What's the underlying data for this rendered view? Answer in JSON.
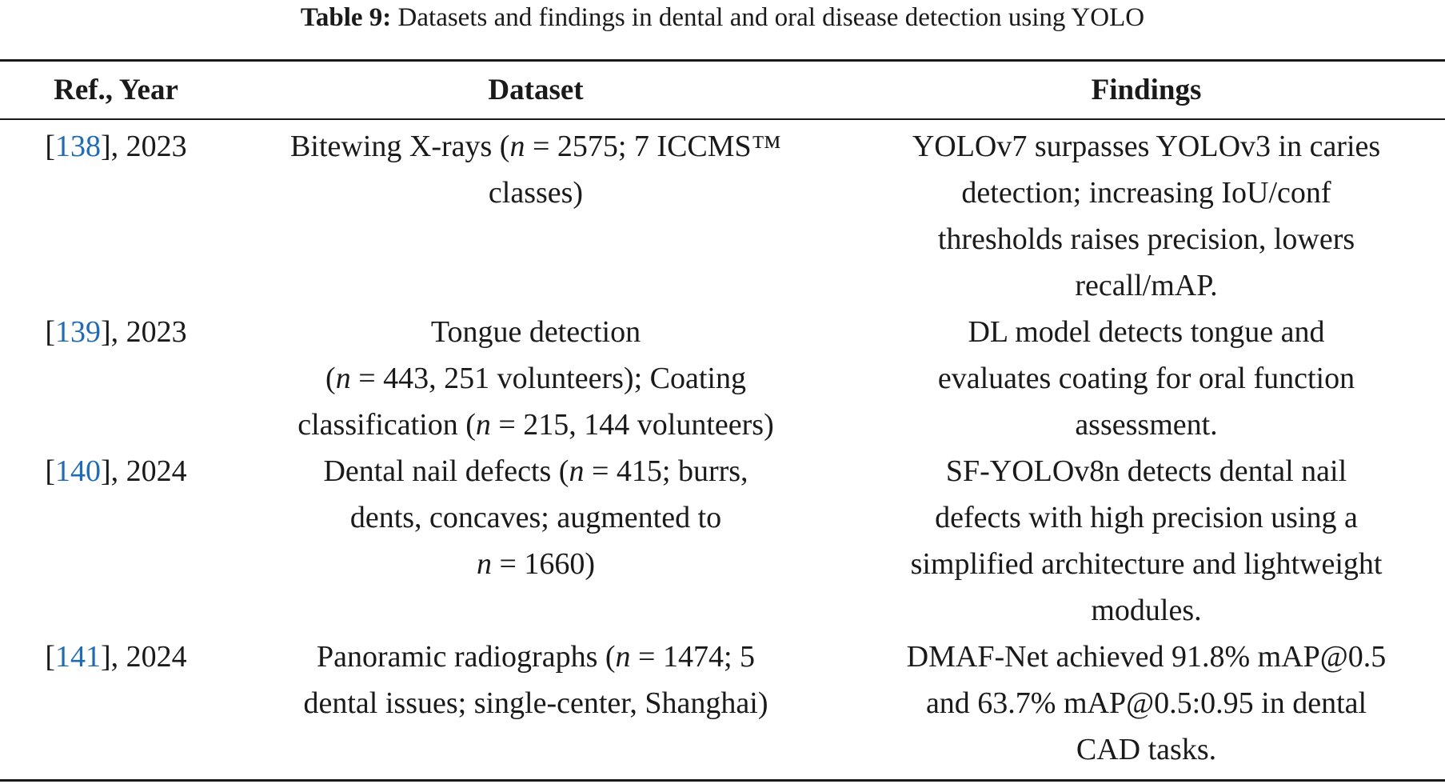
{
  "caption": {
    "label": "Table 9:",
    "text": "Datasets and findings in dental and oral disease detection using YOLO"
  },
  "headers": {
    "ref": "Ref., Year",
    "dataset": "Dataset",
    "findings": "Findings"
  },
  "rows": [
    {
      "ref_num": "138",
      "year": ", 2023",
      "dataset": {
        "lines": [
          [
            "Bitewing X-rays (",
            "n",
            " = 2575; 7 ICCMS™"
          ],
          [
            "classes)"
          ]
        ]
      },
      "findings": {
        "lines": [
          "YOLOv7 surpasses YOLOv3 in caries",
          "detection; increasing IoU/conf",
          "thresholds raises precision, lowers",
          "recall/mAP."
        ]
      }
    },
    {
      "ref_num": "139",
      "year": ", 2023",
      "dataset": {
        "lines": [
          [
            "Tongue detection"
          ],
          [
            "(",
            "n",
            " = 443, 251 volunteers); Coating"
          ],
          [
            "classification (",
            "n",
            " = 215, 144 volunteers)"
          ]
        ]
      },
      "findings": {
        "lines": [
          "DL model detects tongue and",
          "evaluates coating for oral function",
          "assessment."
        ]
      }
    },
    {
      "ref_num": "140",
      "year": ", 2024",
      "dataset": {
        "lines": [
          [
            "Dental nail defects (",
            "n",
            " = 415; burrs,"
          ],
          [
            "dents, concaves; augmented to"
          ],
          [
            "",
            "n",
            " = 1660)"
          ]
        ]
      },
      "findings": {
        "lines": [
          "SF-YOLOv8n detects dental nail",
          "defects with high precision using a",
          "simplified architecture and lightweight",
          "modules."
        ]
      }
    },
    {
      "ref_num": "141",
      "year": ", 2024",
      "dataset": {
        "lines": [
          [
            "Panoramic radiographs (",
            "n",
            " = 1474; 5"
          ],
          [
            "dental issues; single-center, Shanghai)"
          ]
        ]
      },
      "findings": {
        "lines": [
          "DMAF-Net achieved 91.8% mAP@0.5",
          "and 63.7% mAP@0.5:0.95 in dental",
          "CAD tasks."
        ]
      }
    }
  ]
}
